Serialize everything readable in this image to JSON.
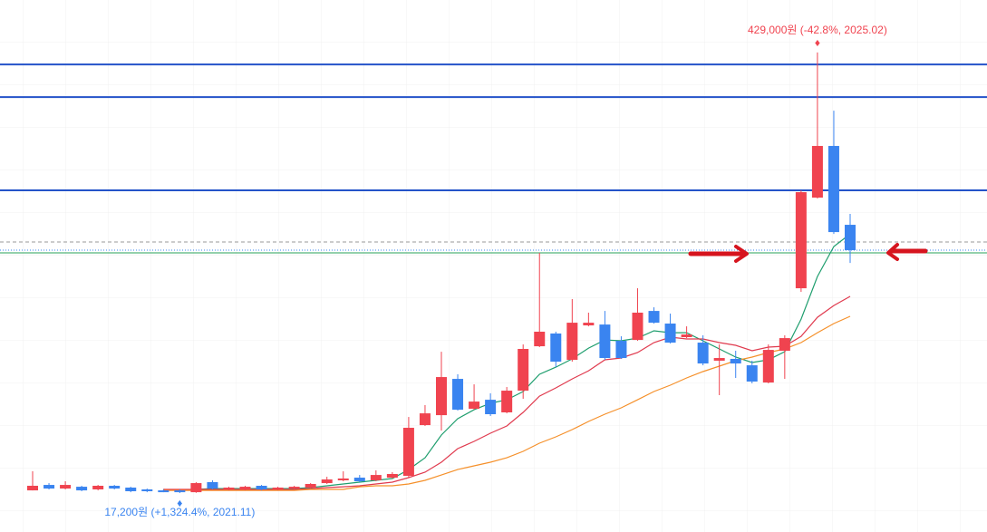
{
  "chart_data": {
    "type": "candlestick",
    "up_color": "#f0434f",
    "down_color": "#3a84f0",
    "ylim": [
      -19200,
      478000
    ],
    "open": [
      19700,
      24800,
      21400,
      23100,
      20600,
      24000,
      22300,
      20600,
      19700,
      19700,
      18000,
      27400,
      20600,
      20600,
      24000,
      20600,
      21400,
      22300,
      26500,
      29100,
      31600,
      29100,
      31600,
      33300,
      80700,
      90000,
      123900,
      96000,
      104400,
      92600,
      112900,
      154400,
      166300,
      141700,
      173900,
      174700,
      159500,
      160300,
      187400,
      175600,
      162900,
      157800,
      140900,
      142600,
      136600,
      120500,
      150200,
      208600,
      293300,
      341600,
      267900
    ],
    "high": [
      37500,
      26500,
      28200,
      24000,
      24800,
      24800,
      23100,
      21400,
      20600,
      20600,
      27400,
      29100,
      23100,
      24000,
      24800,
      23100,
      24000,
      26500,
      32400,
      37500,
      34100,
      38400,
      36700,
      88300,
      99400,
      149300,
      128200,
      118800,
      110400,
      116300,
      156100,
      241700,
      168000,
      198500,
      185800,
      187400,
      163700,
      208600,
      190800,
      184900,
      173000,
      164600,
      156100,
      150200,
      140900,
      156100,
      164600,
      300100,
      429000,
      374600,
      278100
    ],
    "low": [
      19700,
      20600,
      20600,
      18900,
      19700,
      20600,
      18000,
      18000,
      18000,
      17200,
      17400,
      20600,
      19700,
      19700,
      19700,
      19700,
      20600,
      21400,
      25700,
      28200,
      27400,
      28200,
      30800,
      31600,
      79900,
      75600,
      94300,
      95100,
      89200,
      91700,
      105300,
      153600,
      134900,
      140000,
      173000,
      141700,
      142600,
      159500,
      175600,
      157000,
      162000,
      136600,
      108700,
      124800,
      119700,
      119700,
      123900,
      205200,
      292500,
      259400,
      232300
    ],
    "close": [
      24000,
      21400,
      24800,
      19700,
      24000,
      21400,
      18900,
      18900,
      18000,
      18000,
      26500,
      21400,
      22300,
      23100,
      20600,
      22300,
      23100,
      25700,
      29900,
      30800,
      28200,
      34100,
      35000,
      78200,
      91700,
      125600,
      95100,
      102700,
      90900,
      112900,
      151900,
      168000,
      140000,
      176400,
      176400,
      143400,
      143400,
      185800,
      176400,
      157800,
      165400,
      138300,
      143400,
      138300,
      121400,
      151000,
      162000,
      298400,
      341600,
      261100,
      244200
    ],
    "moving_averages": [
      {
        "color": "#1f9e6e",
        "values": [
          null,
          null,
          null,
          null,
          null,
          null,
          null,
          null,
          20600,
          19700,
          20600,
          21400,
          21400,
          21400,
          21400,
          21400,
          21400,
          22300,
          24000,
          25700,
          27400,
          29100,
          30800,
          39200,
          50200,
          71400,
          86700,
          95100,
          101100,
          104400,
          112100,
          128200,
          134900,
          142600,
          152700,
          160300,
          159500,
          162000,
          168800,
          167100,
          167100,
          159500,
          151900,
          144300,
          139200,
          141700,
          149300,
          179800,
          219600,
          247600,
          259400
        ]
      },
      {
        "color": "#e03a4e",
        "values": [
          null,
          null,
          null,
          null,
          null,
          null,
          null,
          null,
          20600,
          20600,
          20600,
          20600,
          20600,
          20600,
          20600,
          20600,
          20600,
          21400,
          22300,
          23100,
          24000,
          25700,
          27400,
          31600,
          36700,
          46000,
          58700,
          65500,
          73100,
          79900,
          92600,
          107800,
          115500,
          123900,
          131500,
          141700,
          143400,
          148500,
          157800,
          162900,
          161200,
          161200,
          157800,
          155300,
          150200,
          153600,
          154400,
          163700,
          181500,
          192500,
          201000
        ]
      },
      {
        "color": "#f5902a",
        "values": [
          null,
          null,
          null,
          null,
          null,
          null,
          null,
          null,
          19700,
          19700,
          19700,
          19700,
          19700,
          19700,
          19700,
          19700,
          19700,
          20600,
          20600,
          20600,
          23100,
          24000,
          24000,
          25700,
          29100,
          34100,
          39200,
          42600,
          46000,
          50200,
          56200,
          63800,
          69700,
          76500,
          84100,
          90900,
          96800,
          104400,
          112100,
          118000,
          124800,
          130700,
          135800,
          140900,
          144300,
          148500,
          151900,
          157800,
          167100,
          175600,
          182400
        ]
      }
    ],
    "hlines": [
      {
        "value": 417800,
        "color": "#2453c9",
        "style": "solid"
      },
      {
        "value": 387300,
        "color": "#2453c9",
        "style": "solid"
      },
      {
        "value": 300100,
        "color": "#2453c9",
        "style": "solid"
      },
      {
        "value": 251800,
        "color": "#9a9a9a",
        "style": "dashed"
      },
      {
        "value": 244200,
        "color": "#3a84f0",
        "style": "dotted"
      },
      {
        "value": 241700,
        "color": "#27a05a",
        "style": "thin"
      }
    ],
    "high_label": {
      "text": "429,000원 (-42.8%, 2025.02)",
      "color": "#f0434f"
    },
    "low_label": {
      "text": "17,200원 (+1,324.4%, 2021.11)",
      "color": "#3a84f0"
    }
  }
}
